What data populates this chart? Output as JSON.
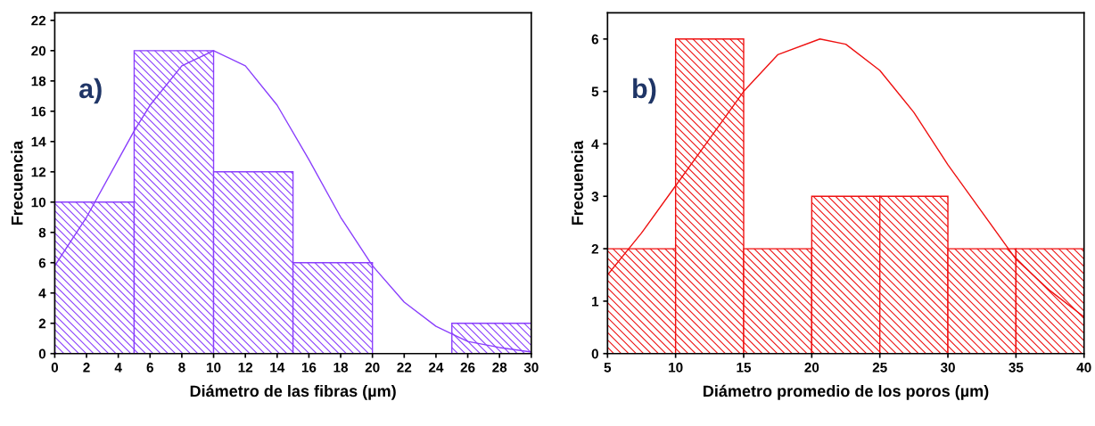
{
  "chart_data": [
    {
      "type": "histogram",
      "xlabel": "Diámetro de las fibras (µm)",
      "ylabel": "Frecuencia",
      "annotations": [
        "a)"
      ],
      "bins": [
        0,
        5,
        10,
        15,
        20,
        25,
        30
      ],
      "values": [
        10,
        20,
        12,
        6,
        0,
        2
      ],
      "color": "#8a3ffc",
      "xlim": [
        0,
        30
      ],
      "xticks": [
        0,
        2,
        4,
        6,
        8,
        10,
        12,
        14,
        16,
        18,
        20,
        22,
        24,
        26,
        28,
        30
      ],
      "ylim": [
        0,
        22.5
      ],
      "yticks": [
        0,
        2,
        4,
        6,
        8,
        10,
        12,
        14,
        16,
        18,
        20,
        22
      ],
      "grid": false,
      "series": [
        {
          "type": "line",
          "color": "#8a3ffc",
          "x": [
            0,
            2,
            4,
            5,
            6,
            8,
            10,
            12,
            14,
            16,
            18,
            20,
            22,
            24,
            26,
            28,
            30
          ],
          "values": [
            5.8,
            9.0,
            12.8,
            14.7,
            16.4,
            19.0,
            20,
            19.0,
            16.4,
            12.8,
            9.0,
            5.8,
            3.4,
            1.8,
            0.8,
            0.4,
            0.1
          ]
        }
      ]
    },
    {
      "type": "histogram",
      "xlabel": "Diámetro promedio de los poros (µm)",
      "ylabel": "Frecuencia",
      "annotations": [
        "b)"
      ],
      "bins": [
        5,
        10,
        15,
        20,
        25,
        30,
        35,
        40
      ],
      "values": [
        2,
        6,
        2,
        3,
        3,
        2,
        2
      ],
      "color": "#ee1111",
      "xlim": [
        5,
        40
      ],
      "xticks": [
        5,
        10,
        15,
        20,
        25,
        30,
        35,
        40
      ],
      "ylim": [
        0,
        6.5
      ],
      "yticks": [
        0,
        1,
        2,
        3,
        4,
        5,
        6
      ],
      "grid": false,
      "series": [
        {
          "type": "line",
          "color": "#ee1111",
          "x": [
            5,
            7.5,
            10,
            12.5,
            15,
            17.5,
            20.6,
            22.5,
            25,
            27.5,
            30,
            32.5,
            35,
            37.5,
            40
          ],
          "values": [
            1.5,
            2.3,
            3.2,
            4.1,
            5.0,
            5.7,
            6,
            5.9,
            5.4,
            4.6,
            3.6,
            2.7,
            1.8,
            1.2,
            0.7
          ]
        }
      ]
    }
  ]
}
